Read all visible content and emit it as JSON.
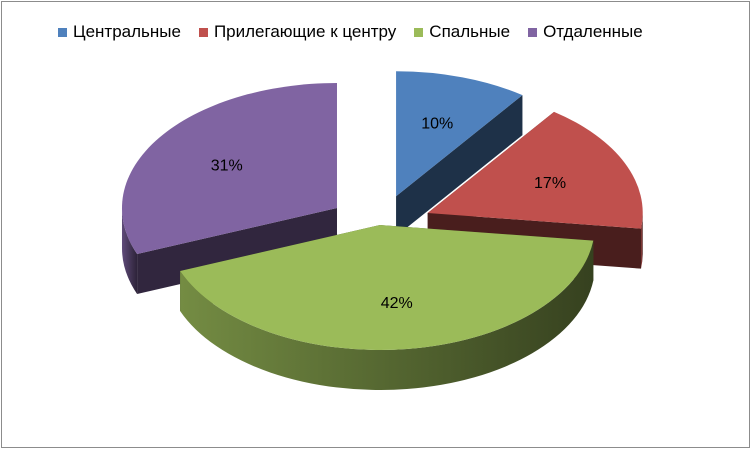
{
  "chart_data": {
    "type": "pie",
    "style": "3d-exploded",
    "categories": [
      "Центральные",
      "Прилегающие к центру",
      "Спальные",
      "Отдаленные"
    ],
    "values": [
      10,
      17,
      42,
      31
    ],
    "labels": [
      "10%",
      "17%",
      "42%",
      "31%"
    ],
    "colors": [
      "#4f81bd",
      "#c0504d",
      "#9bbb59",
      "#8064a2"
    ],
    "legend_position": "top"
  }
}
